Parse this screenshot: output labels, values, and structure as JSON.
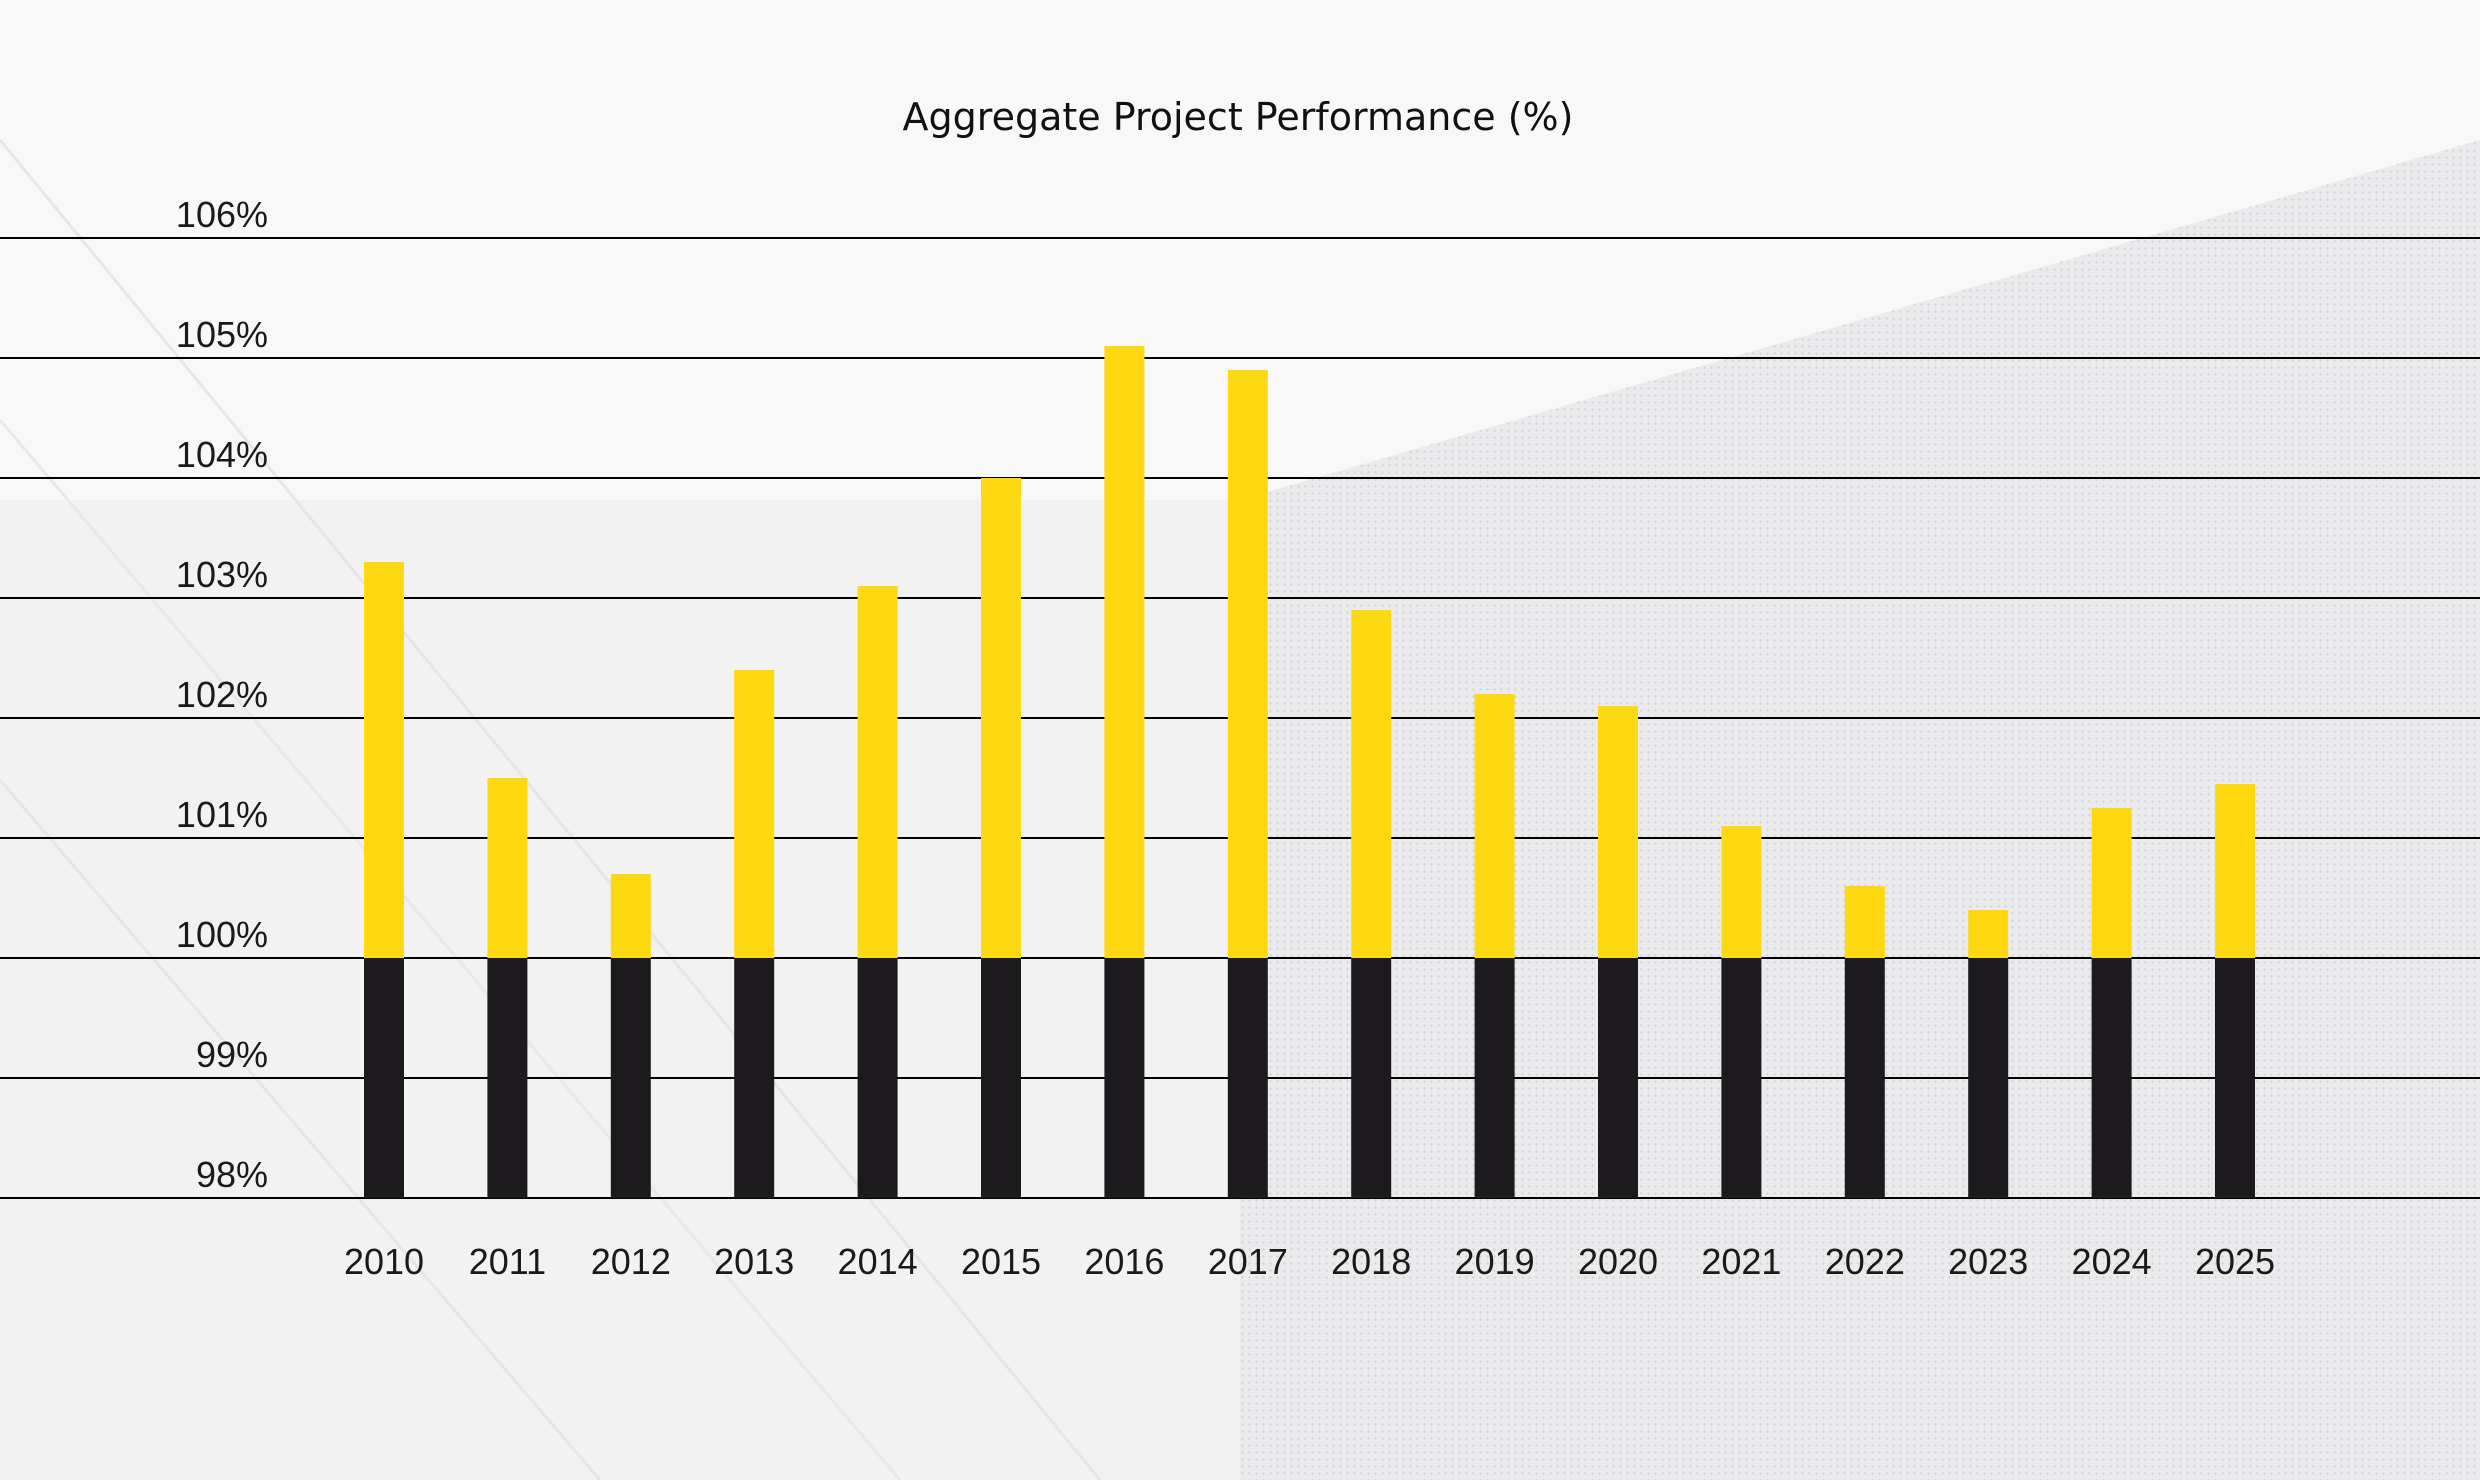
{
  "chart_data": {
    "type": "bar",
    "title": "Aggregate Project Performance (%)",
    "xlabel": "",
    "ylabel": "",
    "ylim": [
      98,
      106
    ],
    "yticks": [
      98,
      99,
      100,
      101,
      102,
      103,
      104,
      105,
      106
    ],
    "ytick_labels": [
      "98%",
      "99%",
      "100%",
      "101%",
      "102%",
      "103%",
      "104%",
      "105%",
      "106%"
    ],
    "baseline": 100,
    "grid": true,
    "legend": "none",
    "categories": [
      "2010",
      "2011",
      "2012",
      "2013",
      "2014",
      "2015",
      "2016",
      "2017",
      "2018",
      "2019",
      "2020",
      "2021",
      "2022",
      "2023",
      "2024",
      "2025"
    ],
    "values": [
      103.3,
      101.5,
      100.7,
      102.4,
      103.1,
      104.0,
      105.1,
      104.9,
      102.9,
      102.2,
      102.1,
      101.1,
      100.6,
      100.4,
      101.25,
      101.45
    ],
    "colors": {
      "above_baseline": "#fed811",
      "below_baseline": "#1c1a1c",
      "grid": "#000000"
    }
  }
}
